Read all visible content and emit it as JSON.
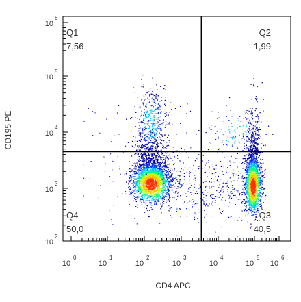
{
  "chart_data": {
    "type": "scatter",
    "xlabel": "CD4 APC",
    "ylabel": "CD195 PE",
    "xscale": "log",
    "yscale": "log",
    "xlim": [
      1,
      1000000
    ],
    "ylim": [
      100,
      1000000
    ],
    "x_tick_labels": [
      {
        "base": "10",
        "exp": "0"
      },
      {
        "base": "10",
        "exp": "1"
      },
      {
        "base": "10",
        "exp": "2"
      },
      {
        "base": "10",
        "exp": "3"
      },
      {
        "base": "10",
        "exp": "4"
      },
      {
        "base": "10",
        "exp": "5"
      },
      {
        "base": "10",
        "exp": "6"
      }
    ],
    "y_tick_labels": [
      {
        "base": "10",
        "exp": "2"
      },
      {
        "base": "10",
        "exp": "3"
      },
      {
        "base": "10",
        "exp": "4"
      },
      {
        "base": "10",
        "exp": "5"
      },
      {
        "base": "10",
        "exp": "6"
      }
    ],
    "gates": {
      "x": 3500,
      "y": 4500
    },
    "quadrants": [
      {
        "id": "Q1",
        "value": "7,56"
      },
      {
        "id": "Q2",
        "value": "1,99"
      },
      {
        "id": "Q3",
        "value": "40,5"
      },
      {
        "id": "Q4",
        "value": "50,0"
      }
    ],
    "populations": [
      {
        "x": 150,
        "y": 1200,
        "weight": 0.5
      },
      {
        "x": 150,
        "y": 15000,
        "weight": 0.075
      },
      {
        "x": 90000,
        "y": 1100,
        "weight": 0.4
      },
      {
        "x": 30000,
        "y": 10000,
        "weight": 0.02
      }
    ],
    "colormap": [
      "#0000a0",
      "#0030ff",
      "#00c0ff",
      "#00ff80",
      "#c0ff00",
      "#ffc000",
      "#ff3000"
    ]
  }
}
